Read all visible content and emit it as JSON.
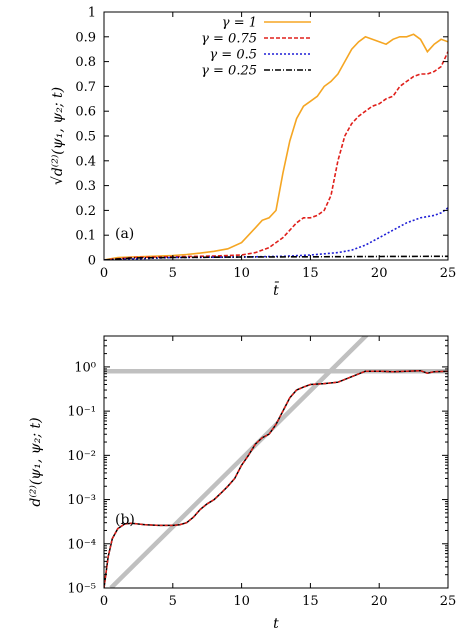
{
  "chart_data": [
    {
      "type": "line",
      "panel_label": "(a)",
      "xlabel": "t̄",
      "ylabel": "√d⁽²⁾(ψ₁, ψ₂; t)",
      "xlim": [
        0,
        25
      ],
      "ylim": [
        0,
        1
      ],
      "xticks": [
        "0",
        "5",
        "10",
        "15",
        "20",
        "25"
      ],
      "yticks": [
        "0",
        "0.1",
        "0.2",
        "0.3",
        "0.4",
        "0.5",
        "0.6",
        "0.7",
        "0.8",
        "0.9",
        "1"
      ],
      "legend_position": "top-center",
      "series": [
        {
          "name": "γ = 1",
          "color": "#f5a623",
          "dash": "solid",
          "x": [
            0,
            1,
            2,
            3,
            4,
            5,
            6,
            7,
            8,
            9,
            10,
            10.5,
            11,
            11.5,
            12,
            12.5,
            13,
            13.5,
            14,
            14.5,
            15,
            15.5,
            16,
            16.5,
            17,
            17.5,
            18,
            18.5,
            19,
            19.5,
            20,
            20.5,
            21,
            21.5,
            22,
            22.5,
            23,
            23.5,
            24,
            24.5,
            25
          ],
          "y": [
            0,
            0.01,
            0.012,
            0.014,
            0.016,
            0.018,
            0.022,
            0.028,
            0.035,
            0.045,
            0.07,
            0.1,
            0.13,
            0.16,
            0.17,
            0.2,
            0.35,
            0.48,
            0.57,
            0.62,
            0.64,
            0.66,
            0.7,
            0.72,
            0.75,
            0.8,
            0.85,
            0.88,
            0.9,
            0.89,
            0.88,
            0.87,
            0.89,
            0.9,
            0.9,
            0.91,
            0.89,
            0.84,
            0.87,
            0.89,
            0.88
          ]
        },
        {
          "name": "γ = 0.75",
          "color": "#e0201b",
          "dash": "4,2",
          "x": [
            0,
            2,
            4,
            6,
            8,
            10,
            11,
            12,
            12.5,
            13,
            13.5,
            14,
            14.5,
            15,
            15.5,
            16,
            16.5,
            17,
            17.5,
            18,
            18.5,
            19,
            19.5,
            20,
            20.5,
            21,
            21.5,
            22,
            22.5,
            23,
            23.5,
            24,
            24.5,
            25
          ],
          "y": [
            0,
            0.01,
            0.012,
            0.014,
            0.016,
            0.02,
            0.03,
            0.05,
            0.07,
            0.09,
            0.12,
            0.15,
            0.17,
            0.17,
            0.18,
            0.2,
            0.26,
            0.4,
            0.5,
            0.55,
            0.58,
            0.6,
            0.62,
            0.63,
            0.65,
            0.66,
            0.7,
            0.72,
            0.74,
            0.75,
            0.75,
            0.76,
            0.78,
            0.84
          ]
        },
        {
          "name": "γ = 0.5",
          "color": "#1f1fd6",
          "dash": "2,2",
          "x": [
            0,
            5,
            10,
            13,
            15,
            16,
            17,
            18,
            19,
            20,
            21,
            22,
            23,
            24,
            24.5,
            25
          ],
          "y": [
            0,
            0.01,
            0.012,
            0.015,
            0.02,
            0.025,
            0.03,
            0.04,
            0.06,
            0.09,
            0.12,
            0.15,
            0.17,
            0.18,
            0.19,
            0.21
          ]
        },
        {
          "name": "γ = 0.25",
          "color": "#000000",
          "dash": "6,2,1,2",
          "x": [
            0,
            2,
            5,
            10,
            15,
            20,
            25
          ],
          "y": [
            0,
            0.008,
            0.01,
            0.012,
            0.013,
            0.014,
            0.015
          ]
        }
      ]
    },
    {
      "type": "line",
      "panel_label": "(b)",
      "xlabel": "t",
      "ylabel": "d⁽²⁾(ψ₁, ψ₂; t)",
      "xlim": [
        0,
        25
      ],
      "ylim": [
        1e-05,
        5
      ],
      "yscale": "log",
      "xticks": [
        "0",
        "5",
        "10",
        "15",
        "20",
        "25"
      ],
      "yticks": [
        "10⁻⁵",
        "10⁻⁴",
        "10⁻³",
        "10⁻²",
        "10⁻¹",
        "10⁰"
      ],
      "series": [
        {
          "color": "#000000",
          "dash": "solid",
          "x": [
            0,
            0.3,
            0.6,
            1,
            1.5,
            2,
            2.5,
            3,
            4,
            5,
            5.5,
            6,
            6.5,
            7,
            7.5,
            8,
            8.5,
            9,
            9.5,
            10,
            10.5,
            11,
            11.5,
            12,
            12.5,
            13,
            13.5,
            14,
            14.5,
            15,
            16,
            17,
            18,
            19,
            20,
            21,
            22,
            23,
            23.5,
            24,
            25
          ],
          "y": [
            1e-05,
            5e-05,
            0.00013,
            0.00022,
            0.00028,
            0.00029,
            0.00028,
            0.00027,
            0.00026,
            0.00026,
            0.00027,
            0.0003,
            0.0004,
            0.0006,
            0.0008,
            0.001,
            0.0014,
            0.002,
            0.003,
            0.006,
            0.01,
            0.018,
            0.025,
            0.03,
            0.05,
            0.1,
            0.2,
            0.3,
            0.35,
            0.4,
            0.42,
            0.45,
            0.6,
            0.8,
            0.8,
            0.78,
            0.8,
            0.82,
            0.72,
            0.78,
            0.8
          ]
        },
        {
          "color": "#e0201b",
          "dash": "3,2",
          "x": [
            0,
            0.3,
            0.6,
            1,
            1.5,
            2,
            2.5,
            3,
            4,
            5,
            5.5,
            6,
            6.5,
            7,
            7.5,
            8,
            8.5,
            9,
            9.5,
            10,
            10.5,
            11,
            11.5,
            12,
            12.5,
            13,
            13.5,
            14,
            14.5,
            15,
            16,
            17,
            18,
            19,
            20,
            21,
            22,
            23,
            23.5,
            24,
            25
          ],
          "y": [
            1e-05,
            5e-05,
            0.00013,
            0.00022,
            0.00028,
            0.00029,
            0.00028,
            0.00027,
            0.00026,
            0.00026,
            0.00027,
            0.0003,
            0.0004,
            0.0006,
            0.0008,
            0.001,
            0.0014,
            0.002,
            0.003,
            0.006,
            0.01,
            0.018,
            0.025,
            0.03,
            0.05,
            0.1,
            0.2,
            0.3,
            0.35,
            0.4,
            0.42,
            0.45,
            0.6,
            0.8,
            0.8,
            0.78,
            0.8,
            0.82,
            0.72,
            0.78,
            0.8
          ]
        },
        {
          "color": "#c0c0c0",
          "dash": "solid",
          "reference": "exponential",
          "x": [
            0.5,
            20
          ],
          "y": [
            1e-05,
            10
          ]
        },
        {
          "color": "#c0c0c0",
          "dash": "solid",
          "reference": "saturation",
          "x": [
            0,
            25
          ],
          "y": [
            0.8,
            0.8
          ]
        }
      ]
    }
  ]
}
